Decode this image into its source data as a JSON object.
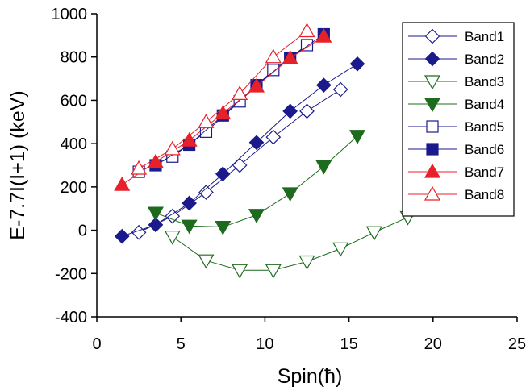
{
  "chart_data": {
    "type": "scatter",
    "title": "",
    "xlabel": "Spin(ħ)",
    "ylabel": "E-7.7I(I+1) (keV)",
    "xlim": [
      0,
      25
    ],
    "ylim": [
      -400,
      1000
    ],
    "xticks": [
      0,
      5,
      10,
      15,
      20,
      25
    ],
    "yticks": [
      -400,
      -200,
      0,
      200,
      400,
      600,
      800,
      1000
    ],
    "xtick_labels": [
      "0",
      "5",
      "10",
      "15",
      "20",
      "25"
    ],
    "ytick_labels": [
      "-400",
      "-200",
      "0",
      "200",
      "400",
      "600",
      "800",
      "1000"
    ],
    "grid": false,
    "legend_position": "top-right",
    "series": [
      {
        "name": "Band1",
        "color": "#1a1a8c",
        "marker": "diamond",
        "filled": false,
        "x": [
          2.5,
          4.5,
          6.5,
          8.5,
          10.5,
          12.5,
          14.5
        ],
        "y": [
          -10,
          65,
          175,
          300,
          430,
          550,
          650
        ]
      },
      {
        "name": "Band2",
        "color": "#1a1a8c",
        "marker": "diamond",
        "filled": true,
        "x": [
          1.5,
          3.5,
          5.5,
          7.5,
          9.5,
          11.5,
          13.5,
          15.5
        ],
        "y": [
          -28,
          25,
          125,
          260,
          405,
          550,
          670,
          768
        ]
      },
      {
        "name": "Band3",
        "color": "#1e6b1e",
        "marker": "triangle-down",
        "filled": false,
        "x": [
          4.5,
          6.5,
          8.5,
          10.5,
          12.5,
          14.5,
          16.5,
          18.5
        ],
        "y": [
          -30,
          -140,
          -185,
          -185,
          -145,
          -85,
          -10,
          60
        ]
      },
      {
        "name": "Band4",
        "color": "#1e6b1e",
        "marker": "triangle-down",
        "filled": true,
        "x": [
          3.5,
          5.5,
          7.5,
          9.5,
          11.5,
          13.5,
          15.5
        ],
        "y": [
          80,
          20,
          15,
          70,
          170,
          295,
          435
        ]
      },
      {
        "name": "Band5",
        "color": "#1a1a8c",
        "marker": "square",
        "filled": false,
        "x": [
          2.5,
          4.5,
          6.5,
          8.5,
          10.5,
          12.5
        ],
        "y": [
          270,
          340,
          455,
          595,
          740,
          855
        ]
      },
      {
        "name": "Band6",
        "color": "#1a1a8c",
        "marker": "square",
        "filled": true,
        "x": [
          3.5,
          5.5,
          7.5,
          9.5,
          11.5,
          13.5
        ],
        "y": [
          300,
          395,
          530,
          670,
          795,
          905
        ]
      },
      {
        "name": "Band7",
        "color": "#e8202a",
        "marker": "triangle-up",
        "filled": true,
        "x": [
          1.5,
          3.5,
          5.5,
          7.5,
          9.5,
          11.5,
          13.5
        ],
        "y": [
          210,
          315,
          415,
          540,
          665,
          795,
          895
        ]
      },
      {
        "name": "Band8",
        "color": "#e8202a",
        "marker": "triangle-up",
        "filled": false,
        "x": [
          2.5,
          4.5,
          6.5,
          8.5,
          10.5,
          12.5
        ],
        "y": [
          285,
          375,
          500,
          630,
          800,
          920
        ]
      }
    ]
  }
}
